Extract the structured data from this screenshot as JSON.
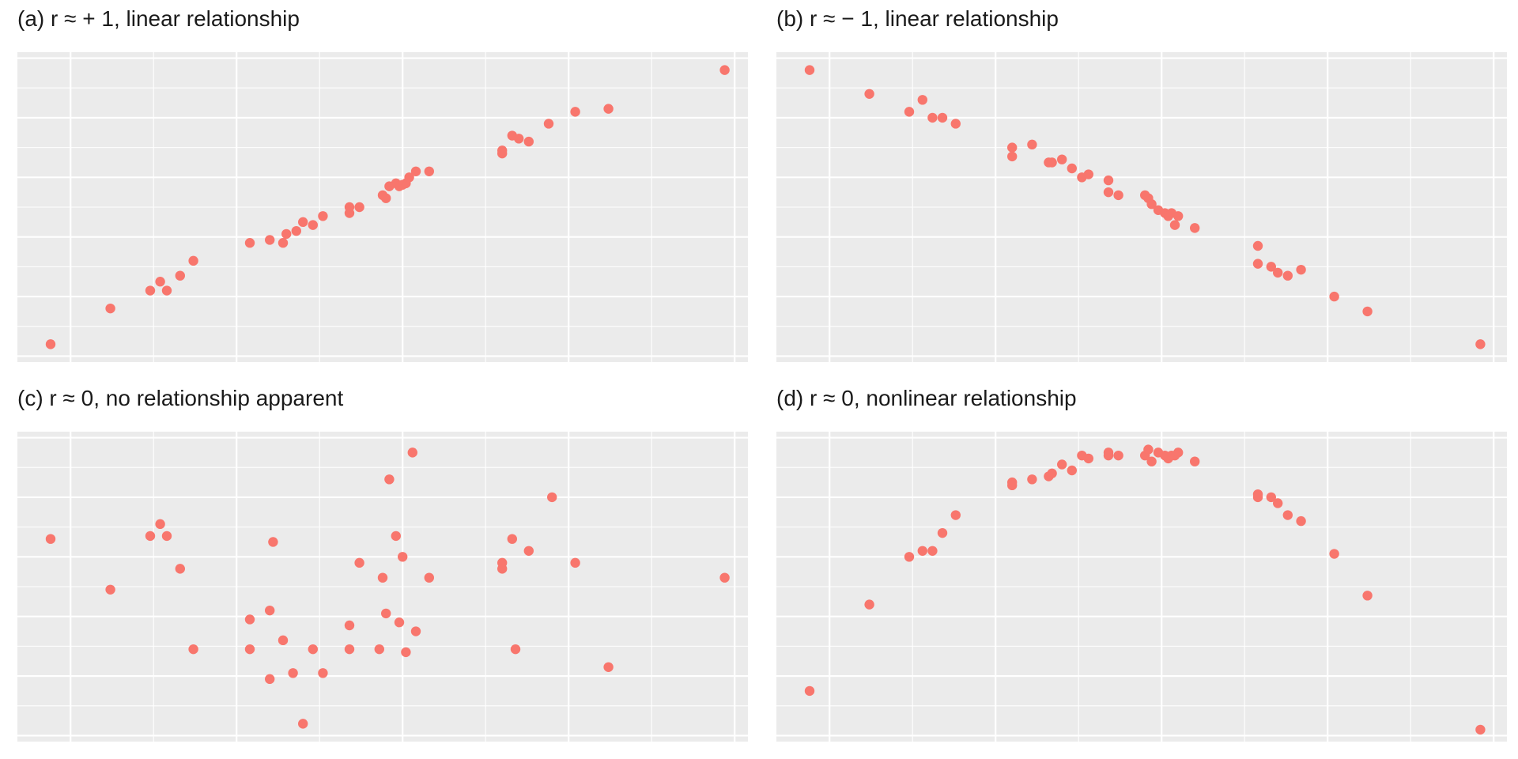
{
  "chart_data": [
    {
      "type": "scatter",
      "title": "(a) r ≈ + 1, linear relationship",
      "xlim": [
        -0.08,
        1.02
      ],
      "ylim": [
        -0.02,
        1.02
      ],
      "grid": true,
      "point_color": "#F8766D",
      "x": [
        -0.03,
        0.06,
        0.12,
        0.135,
        0.145,
        0.165,
        0.185,
        0.27,
        0.3,
        0.32,
        0.325,
        0.34,
        0.35,
        0.365,
        0.38,
        0.42,
        0.42,
        0.435,
        0.47,
        0.475,
        0.48,
        0.49,
        0.495,
        0.5,
        0.505,
        0.51,
        0.52,
        0.54,
        0.65,
        0.65,
        0.665,
        0.675,
        0.69,
        0.72,
        0.76,
        0.81,
        0.985
      ],
      "y": [
        0.04,
        0.16,
        0.22,
        0.25,
        0.22,
        0.27,
        0.32,
        0.38,
        0.39,
        0.38,
        0.41,
        0.42,
        0.45,
        0.44,
        0.47,
        0.48,
        0.5,
        0.5,
        0.54,
        0.53,
        0.57,
        0.58,
        0.57,
        0.575,
        0.58,
        0.6,
        0.62,
        0.62,
        0.68,
        0.69,
        0.74,
        0.73,
        0.72,
        0.78,
        0.82,
        0.83,
        0.96
      ]
    },
    {
      "type": "scatter",
      "title": "(b) r ≈ − 1, linear relationship",
      "xlim": [
        -0.08,
        1.02
      ],
      "ylim": [
        -0.02,
        1.02
      ],
      "grid": true,
      "point_color": "#F8766D",
      "x": [
        -0.03,
        0.06,
        0.12,
        0.14,
        0.155,
        0.17,
        0.19,
        0.275,
        0.275,
        0.305,
        0.33,
        0.335,
        0.35,
        0.365,
        0.38,
        0.39,
        0.42,
        0.42,
        0.435,
        0.475,
        0.48,
        0.485,
        0.495,
        0.505,
        0.51,
        0.515,
        0.52,
        0.525,
        0.55,
        0.645,
        0.645,
        0.665,
        0.675,
        0.69,
        0.71,
        0.76,
        0.81,
        0.98
      ],
      "y": [
        0.96,
        0.88,
        0.82,
        0.86,
        0.8,
        0.8,
        0.78,
        0.7,
        0.67,
        0.71,
        0.65,
        0.65,
        0.66,
        0.63,
        0.6,
        0.61,
        0.59,
        0.55,
        0.54,
        0.54,
        0.53,
        0.51,
        0.49,
        0.48,
        0.47,
        0.48,
        0.44,
        0.47,
        0.43,
        0.37,
        0.31,
        0.3,
        0.28,
        0.27,
        0.29,
        0.2,
        0.15,
        0.04
      ]
    },
    {
      "type": "scatter",
      "title": "(c) r ≈ 0, no relationship apparent",
      "xlim": [
        -0.08,
        1.02
      ],
      "ylim": [
        -0.02,
        1.02
      ],
      "grid": true,
      "point_color": "#F8766D",
      "x": [
        -0.03,
        0.06,
        0.12,
        0.135,
        0.145,
        0.165,
        0.185,
        0.27,
        0.27,
        0.3,
        0.3,
        0.305,
        0.32,
        0.335,
        0.35,
        0.365,
        0.38,
        0.42,
        0.42,
        0.435,
        0.465,
        0.47,
        0.475,
        0.48,
        0.49,
        0.495,
        0.5,
        0.505,
        0.515,
        0.52,
        0.54,
        0.65,
        0.65,
        0.665,
        0.67,
        0.69,
        0.725,
        0.76,
        0.81,
        0.985
      ],
      "y": [
        0.66,
        0.49,
        0.67,
        0.71,
        0.67,
        0.56,
        0.29,
        0.39,
        0.29,
        0.42,
        0.19,
        0.65,
        0.32,
        0.21,
        0.04,
        0.29,
        0.21,
        0.37,
        0.29,
        0.58,
        0.29,
        0.53,
        0.41,
        0.86,
        0.67,
        0.38,
        0.6,
        0.28,
        0.95,
        0.35,
        0.53,
        0.56,
        0.58,
        0.66,
        0.29,
        0.62,
        0.8,
        0.58,
        0.23,
        0.53
      ]
    },
    {
      "type": "scatter",
      "title": "(d) r ≈ 0, nonlinear relationship",
      "xlim": [
        -0.08,
        1.02
      ],
      "ylim": [
        -0.02,
        1.02
      ],
      "grid": true,
      "point_color": "#F8766D",
      "x": [
        -0.03,
        0.06,
        0.12,
        0.14,
        0.155,
        0.17,
        0.19,
        0.275,
        0.275,
        0.305,
        0.33,
        0.335,
        0.35,
        0.365,
        0.38,
        0.39,
        0.42,
        0.42,
        0.435,
        0.475,
        0.48,
        0.485,
        0.495,
        0.505,
        0.51,
        0.515,
        0.52,
        0.525,
        0.55,
        0.645,
        0.645,
        0.665,
        0.675,
        0.69,
        0.71,
        0.76,
        0.81,
        0.98
      ],
      "y": [
        0.15,
        0.44,
        0.6,
        0.62,
        0.62,
        0.68,
        0.74,
        0.85,
        0.84,
        0.86,
        0.87,
        0.88,
        0.91,
        0.89,
        0.94,
        0.93,
        0.94,
        0.95,
        0.94,
        0.94,
        0.96,
        0.92,
        0.95,
        0.94,
        0.93,
        0.94,
        0.94,
        0.95,
        0.92,
        0.8,
        0.81,
        0.8,
        0.78,
        0.74,
        0.72,
        0.61,
        0.47,
        0.02
      ]
    }
  ]
}
